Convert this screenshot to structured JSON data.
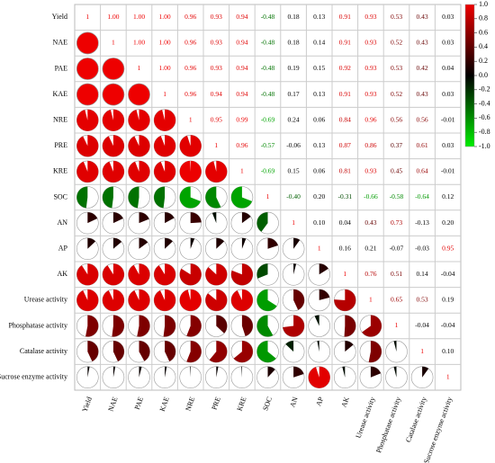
{
  "chart_data": {
    "type": "corrplot",
    "labels": [
      "Yield",
      "NAE",
      "PAE",
      "KAE",
      "NRE",
      "PRE",
      "KRE",
      "SOC",
      "AN",
      "AP",
      "AK",
      "Urease activity",
      "Phosphatase activity",
      "Catalase activity",
      "Sucrose enzyme activity"
    ],
    "values": [
      [
        1,
        1.0,
        1.0,
        1.0,
        0.96,
        0.93,
        0.94,
        -0.48,
        0.18,
        0.13,
        0.91,
        0.93,
        0.53,
        0.43,
        0.03
      ],
      [
        null,
        1,
        1.0,
        1.0,
        0.96,
        0.93,
        0.94,
        -0.48,
        0.18,
        0.14,
        0.91,
        0.93,
        0.52,
        0.43,
        0.03
      ],
      [
        null,
        null,
        1,
        1.0,
        0.96,
        0.93,
        0.94,
        -0.48,
        0.19,
        0.15,
        0.92,
        0.93,
        0.53,
        0.42,
        0.04
      ],
      [
        null,
        null,
        null,
        1,
        0.96,
        0.94,
        0.94,
        -0.48,
        0.17,
        0.13,
        0.91,
        0.93,
        0.52,
        0.43,
        0.03
      ],
      [
        null,
        null,
        null,
        null,
        1,
        0.95,
        0.99,
        -0.69,
        0.24,
        0.06,
        0.84,
        0.96,
        0.56,
        0.56,
        -0.01
      ],
      [
        null,
        null,
        null,
        null,
        null,
        1,
        0.96,
        -0.57,
        -0.06,
        0.13,
        0.87,
        0.86,
        0.37,
        0.61,
        0.03
      ],
      [
        null,
        null,
        null,
        null,
        null,
        null,
        1,
        -0.69,
        0.15,
        0.06,
        0.81,
        0.93,
        0.45,
        0.64,
        -0.01
      ],
      [
        null,
        null,
        null,
        null,
        null,
        null,
        null,
        1,
        -0.4,
        0.2,
        -0.31,
        -0.66,
        -0.58,
        -0.64,
        0.12
      ],
      [
        null,
        null,
        null,
        null,
        null,
        null,
        null,
        null,
        1,
        0.1,
        0.04,
        0.43,
        0.73,
        -0.13,
        0.2
      ],
      [
        null,
        null,
        null,
        null,
        null,
        null,
        null,
        null,
        null,
        1,
        0.16,
        0.21,
        -0.07,
        -0.03,
        0.95
      ],
      [
        null,
        null,
        null,
        null,
        null,
        null,
        null,
        null,
        null,
        null,
        1,
        0.76,
        0.51,
        0.14,
        -0.04
      ],
      [
        null,
        null,
        null,
        null,
        null,
        null,
        null,
        null,
        null,
        null,
        null,
        1,
        0.65,
        0.53,
        0.19
      ],
      [
        null,
        null,
        null,
        null,
        null,
        null,
        null,
        null,
        null,
        null,
        null,
        null,
        1,
        -0.04,
        -0.04
      ],
      [
        null,
        null,
        null,
        null,
        null,
        null,
        null,
        null,
        null,
        null,
        null,
        null,
        null,
        1,
        0.1
      ],
      [
        null,
        null,
        null,
        null,
        null,
        null,
        null,
        null,
        null,
        null,
        null,
        null,
        null,
        null,
        1
      ]
    ],
    "value_labels": [
      [
        "1",
        "1.00",
        "1.00",
        "1.00",
        "0.96",
        "0.93",
        "0.94",
        "-0.48",
        "0.18",
        "0.13",
        "0.91",
        "0.93",
        "0.53",
        "0.43",
        "0.03"
      ],
      [
        null,
        "1",
        "1.00",
        "1.00",
        "0.96",
        "0.93",
        "0.94",
        "-0.48",
        "0.18",
        "0.14",
        "0.91",
        "0.93",
        "0.52",
        "0.43",
        "0.03"
      ],
      [
        null,
        null,
        "1",
        "1.00",
        "0.96",
        "0.93",
        "0.94",
        "-0.48",
        "0.19",
        "0.15",
        "0.92",
        "0.93",
        "0.53",
        "0.42",
        "0.04"
      ],
      [
        null,
        null,
        null,
        "1",
        "0.96",
        "0.94",
        "0.94",
        "-0.48",
        "0.17",
        "0.13",
        "0.91",
        "0.93",
        "0.52",
        "0.43",
        "0.03"
      ],
      [
        null,
        null,
        null,
        null,
        "1",
        "0.95",
        "0.99",
        "-0.69",
        "0.24",
        "0.06",
        "0.84",
        "0.96",
        "0.56",
        "0.56",
        "-0.01"
      ],
      [
        null,
        null,
        null,
        null,
        null,
        "1",
        "0.96",
        "-0.57",
        "-0.06",
        "0.13",
        "0.87",
        "0.86",
        "0.37",
        "0.61",
        "0.03"
      ],
      [
        null,
        null,
        null,
        null,
        null,
        null,
        "1",
        "-0.69",
        "0.15",
        "0.06",
        "0.81",
        "0.93",
        "0.45",
        "0.64",
        "-0.01"
      ],
      [
        null,
        null,
        null,
        null,
        null,
        null,
        null,
        "1",
        "-0.40",
        "0.20",
        "-0.31",
        "-0.66",
        "-0.58",
        "-0.64",
        "0.12"
      ],
      [
        null,
        null,
        null,
        null,
        null,
        null,
        null,
        null,
        "1",
        "0.10",
        "0.04",
        "0.43",
        "0.73",
        "-0.13",
        "0.20"
      ],
      [
        null,
        null,
        null,
        null,
        null,
        null,
        null,
        null,
        null,
        "1",
        "0.16",
        "0.21",
        "-0.07",
        "-0.03",
        "0.95"
      ],
      [
        null,
        null,
        null,
        null,
        null,
        null,
        null,
        null,
        null,
        null,
        "1",
        "0.76",
        "0.51",
        "0.14",
        "-0.04"
      ],
      [
        null,
        null,
        null,
        null,
        null,
        null,
        null,
        null,
        null,
        null,
        null,
        "1",
        "0.65",
        "0.53",
        "0.19"
      ],
      [
        null,
        null,
        null,
        null,
        null,
        null,
        null,
        null,
        null,
        null,
        null,
        null,
        "1",
        "-0.04",
        "-0.04"
      ],
      [
        null,
        null,
        null,
        null,
        null,
        null,
        null,
        null,
        null,
        null,
        null,
        null,
        null,
        "1",
        "0.10"
      ],
      [
        null,
        null,
        null,
        null,
        null,
        null,
        null,
        null,
        null,
        null,
        null,
        null,
        null,
        null,
        "1"
      ]
    ],
    "colormap": [
      "#00ee00",
      "#000000",
      "#ee0000"
    ],
    "clim": [
      -1,
      1
    ],
    "cticks": [
      {
        "value": 1,
        "label": "1.0"
      },
      0.8,
      0.6,
      0.4,
      0.2,
      {
        "value": 0,
        "label": "0.0"
      },
      -0.2,
      -0.4,
      -0.6,
      -0.8,
      {
        "value": -1,
        "label": "-1.0"
      }
    ]
  }
}
